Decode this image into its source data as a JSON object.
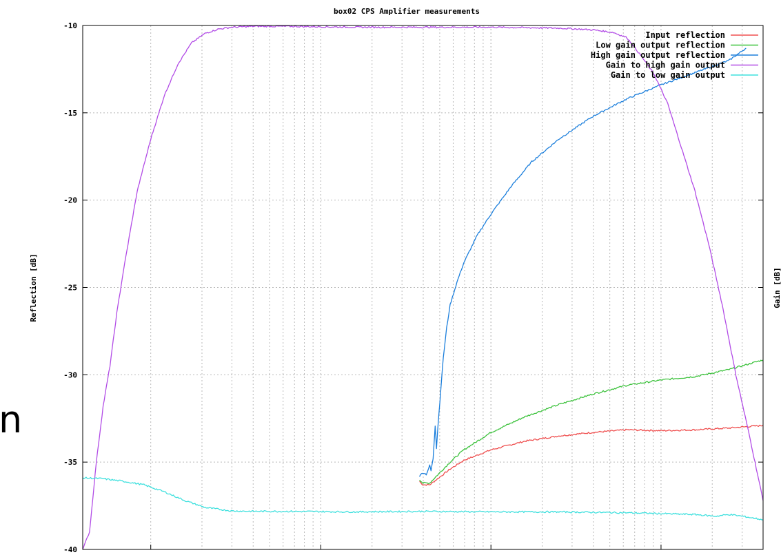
{
  "page": {
    "edge_fragment": "n"
  },
  "chart_data": {
    "type": "line",
    "title": "box02 CPS Amplifier measurements",
    "ylabel": "Reflection [dB]",
    "y2label": "Gain [dB]",
    "xlabel": "",
    "ylim": [
      -40,
      -10
    ],
    "yticks": [
      -10,
      -15,
      -20,
      -25,
      -30,
      -35,
      -40
    ],
    "xlim": [
      0,
      1
    ],
    "grid": true,
    "legend_position": "top-right",
    "colors": {
      "frame": "#000000",
      "grid": "#b8b8b8"
    },
    "series": [
      {
        "name": "Input reflection",
        "color": "#ef4e4e",
        "x": [
          0.495,
          0.5,
          0.51,
          0.52,
          0.54,
          0.56,
          0.6,
          0.65,
          0.7,
          0.75,
          0.8,
          0.85,
          0.9,
          0.95,
          1.0
        ],
        "y": [
          -36.1,
          -36.3,
          -36.3,
          -36.0,
          -35.4,
          -34.9,
          -34.3,
          -33.8,
          -33.5,
          -33.3,
          -33.15,
          -33.2,
          -33.15,
          -33.05,
          -32.9
        ]
      },
      {
        "name": "Low gain output reflection",
        "color": "#3cc23c",
        "x": [
          0.495,
          0.5,
          0.51,
          0.52,
          0.54,
          0.56,
          0.6,
          0.65,
          0.7,
          0.75,
          0.8,
          0.85,
          0.9,
          0.95,
          1.0
        ],
        "y": [
          -36.0,
          -36.2,
          -36.2,
          -35.8,
          -35.0,
          -34.3,
          -33.3,
          -32.4,
          -31.7,
          -31.1,
          -30.6,
          -30.3,
          -30.1,
          -29.7,
          -29.15
        ]
      },
      {
        "name": "High gain output reflection",
        "color": "#1c7fdc",
        "x": [
          0.495,
          0.5,
          0.505,
          0.51,
          0.512,
          0.515,
          0.518,
          0.52,
          0.522,
          0.525,
          0.53,
          0.535,
          0.54,
          0.55,
          0.56,
          0.58,
          0.6,
          0.63,
          0.66,
          0.7,
          0.75,
          0.8,
          0.85,
          0.9,
          0.95,
          0.975
        ],
        "y": [
          -35.8,
          -35.6,
          -35.7,
          -35.2,
          -35.5,
          -34.8,
          -32.9,
          -34.2,
          -33.0,
          -31.5,
          -29.0,
          -27.3,
          -26.0,
          -24.7,
          -23.6,
          -22.0,
          -20.8,
          -19.2,
          -17.8,
          -16.5,
          -15.2,
          -14.2,
          -13.4,
          -12.7,
          -12.0,
          -11.3
        ]
      },
      {
        "name": "Gain to high gain output",
        "color": "#b24ce6",
        "x": [
          0.0,
          0.01,
          0.02,
          0.03,
          0.04,
          0.045,
          0.05,
          0.06,
          0.08,
          0.1,
          0.12,
          0.14,
          0.16,
          0.18,
          0.2,
          0.22,
          0.25,
          0.3,
          0.4,
          0.5,
          0.6,
          0.7,
          0.75,
          0.78,
          0.8,
          0.82,
          0.84,
          0.86,
          0.88,
          0.9,
          0.92,
          0.94,
          0.96,
          0.98,
          1.0
        ],
        "y": [
          -40.0,
          -39.0,
          -35.0,
          -31.8,
          -29.5,
          -28.0,
          -26.5,
          -24.0,
          -19.5,
          -16.5,
          -14.0,
          -12.2,
          -11.0,
          -10.45,
          -10.2,
          -10.1,
          -10.05,
          -10.05,
          -10.1,
          -10.1,
          -10.1,
          -10.15,
          -10.25,
          -10.4,
          -10.7,
          -11.7,
          -12.8,
          -14.5,
          -17.0,
          -19.5,
          -22.5,
          -26.0,
          -30.0,
          -33.5,
          -37.2
        ]
      },
      {
        "name": "Gain to low gain output",
        "color": "#3fe0de",
        "x": [
          0.0,
          0.03,
          0.06,
          0.09,
          0.12,
          0.15,
          0.18,
          0.22,
          0.26,
          0.3,
          0.4,
          0.5,
          0.6,
          0.7,
          0.8,
          0.9,
          0.93,
          0.95,
          0.97,
          1.0
        ],
        "y": [
          -35.9,
          -35.95,
          -36.1,
          -36.3,
          -36.7,
          -37.2,
          -37.6,
          -37.8,
          -37.82,
          -37.82,
          -37.85,
          -37.82,
          -37.85,
          -37.85,
          -37.9,
          -38.0,
          -38.1,
          -38.0,
          -38.1,
          -38.3
        ]
      }
    ]
  }
}
